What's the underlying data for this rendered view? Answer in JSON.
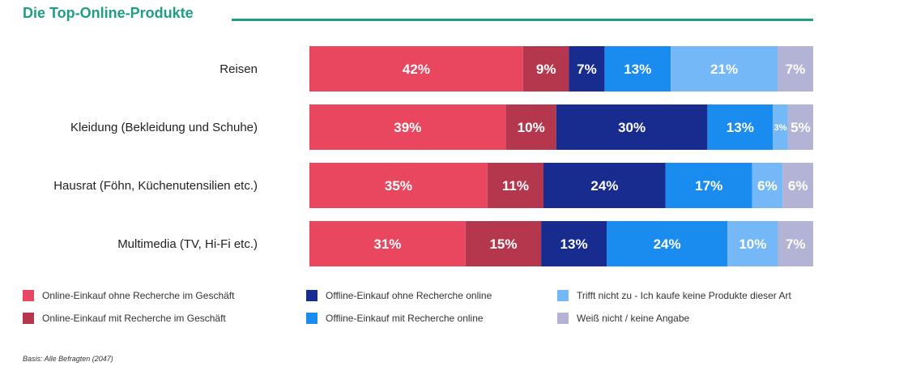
{
  "chart_data": {
    "type": "bar",
    "orientation": "horizontal",
    "stacked": true,
    "title": "Die Top-Online-Produkte",
    "categories": [
      "Reisen",
      "Kleidung (Bekleidung und Schuhe)",
      "Hausrat (Föhn, Küchenutensilien etc.)",
      "Multimedia (TV, Hi-Fi etc.)"
    ],
    "series": [
      {
        "name": "Online-Einkauf ohne Recherche im Geschäft",
        "color": "#e8475f",
        "values": [
          42,
          39,
          35,
          31
        ]
      },
      {
        "name": "Online-Einkauf mit Recherche im Geschäft",
        "color": "#b5374d",
        "values": [
          9,
          10,
          11,
          15
        ]
      },
      {
        "name": "Offline-Einkauf ohne Recherche online",
        "color": "#182b8f",
        "values": [
          7,
          30,
          24,
          13
        ]
      },
      {
        "name": "Offline-Einkauf mit Recherche online",
        "color": "#1a8cf0",
        "values": [
          13,
          13,
          17,
          24
        ]
      },
      {
        "name": "Trifft nicht zu - Ich kaufe keine Produkte dieser Art",
        "color": "#74b8f7",
        "values": [
          21,
          3,
          6,
          10
        ]
      },
      {
        "name": "Weiß nicht / keine Angabe",
        "color": "#b3b3d6",
        "values": [
          7,
          5,
          6,
          7
        ]
      }
    ],
    "value_suffix": "%",
    "grid": false,
    "legend_position": "bottom"
  },
  "footnote": "Basis: Alle Befragten (2047)"
}
